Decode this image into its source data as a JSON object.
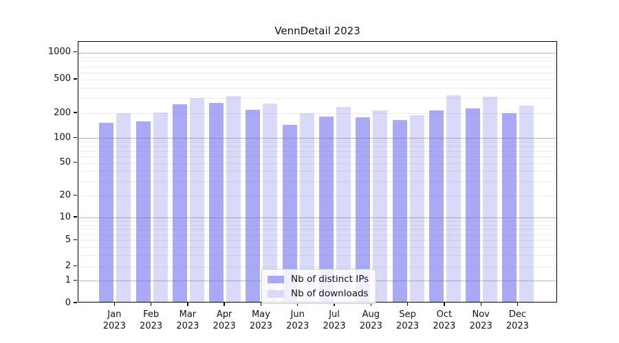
{
  "chart_data": {
    "type": "bar",
    "title": "VennDetail 2023",
    "categories": [
      "Jan",
      "Feb",
      "Mar",
      "Apr",
      "May",
      "Jun",
      "Jul",
      "Aug",
      "Sep",
      "Oct",
      "Nov",
      "Dec"
    ],
    "x_tick_year": "2023",
    "series": [
      {
        "name": "Nb of distinct IPs",
        "color": "#a9a9f5",
        "values": [
          150,
          157,
          253,
          263,
          218,
          143,
          180,
          176,
          164,
          212,
          225,
          196
        ]
      },
      {
        "name": "Nb of downloads",
        "color": "#d9d9f8",
        "values": [
          198,
          203,
          298,
          314,
          258,
          197,
          232,
          214,
          188,
          320,
          310,
          243
        ]
      }
    ],
    "xlabel": "",
    "ylabel": "",
    "yscale": "symlog",
    "y_ticks": [
      0,
      1,
      2,
      5,
      10,
      20,
      50,
      100,
      200,
      500,
      1000
    ],
    "ylim": [
      0,
      1400
    ],
    "grid": "horizontal major and minor gridlines, drawn above bars",
    "legend_position": "lower center"
  }
}
